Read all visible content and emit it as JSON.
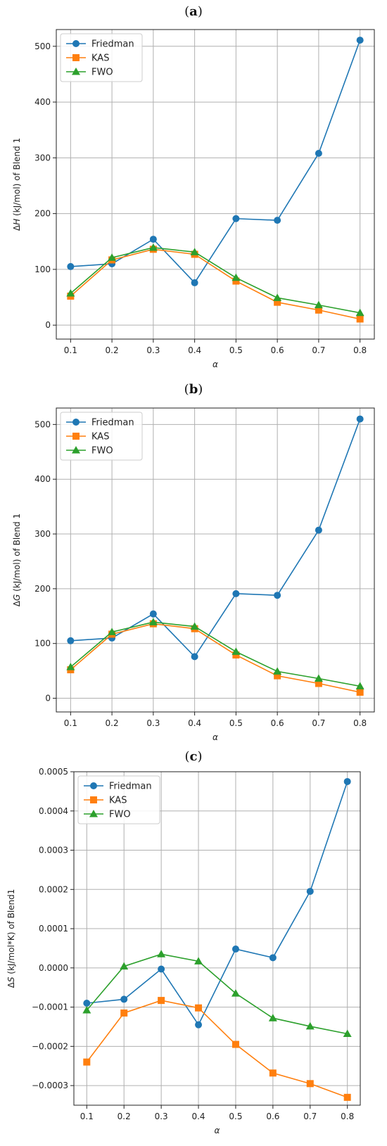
{
  "colors": {
    "friedman": "#1f77b4",
    "kas": "#ff7f0e",
    "fwo": "#2ca02c",
    "grid": "#b0b0b0"
  },
  "chart_data": [
    {
      "type": "line",
      "panel_label": "a",
      "xlabel": "α",
      "ylabel_prefix": "Δ",
      "ylabel_var": "H",
      "ylabel_suffix": " (kJ/mol) of Blend 1",
      "x": [
        0.1,
        0.2,
        0.3,
        0.4,
        0.5,
        0.6,
        0.7,
        0.8
      ],
      "xticks": [
        "0.1",
        "0.2",
        "0.3",
        "0.4",
        "0.5",
        "0.6",
        "0.7",
        "0.8"
      ],
      "ylim": [
        -25,
        530
      ],
      "yticks": [
        0,
        100,
        200,
        300,
        400,
        500
      ],
      "ytick_labels": [
        "0",
        "100",
        "200",
        "300",
        "400",
        "500"
      ],
      "grid": true,
      "legend": "top-left",
      "series": [
        {
          "name": "Friedman",
          "marker": "circle",
          "values": [
            105,
            110,
            154,
            76,
            191,
            188,
            308,
            511
          ]
        },
        {
          "name": "KAS",
          "marker": "square",
          "values": [
            52,
            117,
            136,
            127,
            79,
            41,
            27,
            11
          ]
        },
        {
          "name": "FWO",
          "marker": "triangle",
          "values": [
            57,
            121,
            139,
            131,
            85,
            49,
            36,
            22
          ]
        }
      ]
    },
    {
      "type": "line",
      "panel_label": "b",
      "xlabel": "α",
      "ylabel_prefix": "Δ",
      "ylabel_var": "G",
      "ylabel_suffix": " (kJ/mol) of Blend 1",
      "x": [
        0.1,
        0.2,
        0.3,
        0.4,
        0.5,
        0.6,
        0.7,
        0.8
      ],
      "xticks": [
        "0.1",
        "0.2",
        "0.3",
        "0.4",
        "0.5",
        "0.6",
        "0.7",
        "0.8"
      ],
      "ylim": [
        -25,
        530
      ],
      "yticks": [
        0,
        100,
        200,
        300,
        400,
        500
      ],
      "ytick_labels": [
        "0",
        "100",
        "200",
        "300",
        "400",
        "500"
      ],
      "grid": true,
      "legend": "top-left",
      "series": [
        {
          "name": "Friedman",
          "marker": "circle",
          "values": [
            105,
            110,
            154,
            76,
            191,
            188,
            307,
            510
          ]
        },
        {
          "name": "KAS",
          "marker": "square",
          "values": [
            52,
            117,
            136,
            127,
            79,
            41,
            27,
            11
          ]
        },
        {
          "name": "FWO",
          "marker": "triangle",
          "values": [
            57,
            121,
            139,
            131,
            85,
            49,
            36,
            22
          ]
        }
      ]
    },
    {
      "type": "line",
      "panel_label": "c",
      "xlabel": "α",
      "ylabel_prefix": "Δ",
      "ylabel_var": "S",
      "ylabel_suffix": " (kJ/mol*K) of Blend1",
      "x": [
        0.1,
        0.2,
        0.3,
        0.4,
        0.5,
        0.6,
        0.7,
        0.8
      ],
      "xticks": [
        "0.1",
        "0.2",
        "0.3",
        "0.4",
        "0.5",
        "0.6",
        "0.7",
        "0.8"
      ],
      "ylim": [
        -0.00035,
        0.0005
      ],
      "yticks": [
        -0.0003,
        -0.0002,
        -0.0001,
        0.0,
        0.0001,
        0.0002,
        0.0003,
        0.0004,
        0.0005
      ],
      "ytick_labels": [
        "−0.0003",
        "−0.0002",
        "−0.0001",
        "0.0000",
        "0.0001",
        "0.0002",
        "0.0003",
        "0.0004",
        "0.0005"
      ],
      "grid": true,
      "legend": "top-left",
      "series": [
        {
          "name": "Friedman",
          "marker": "circle",
          "values": [
            -9e-05,
            -8e-05,
            -3e-06,
            -0.000145,
            4.8e-05,
            2.6e-05,
            0.000195,
            0.000475
          ]
        },
        {
          "name": "KAS",
          "marker": "square",
          "values": [
            -0.00024,
            -0.000115,
            -8.3e-05,
            -0.000102,
            -0.000195,
            -0.000268,
            -0.000295,
            -0.00033
          ]
        },
        {
          "name": "FWO",
          "marker": "triangle",
          "values": [
            -0.000108,
            4e-06,
            3.5e-05,
            1.7e-05,
            -6.5e-05,
            -0.000128,
            -0.000149,
            -0.000168
          ]
        }
      ]
    }
  ]
}
